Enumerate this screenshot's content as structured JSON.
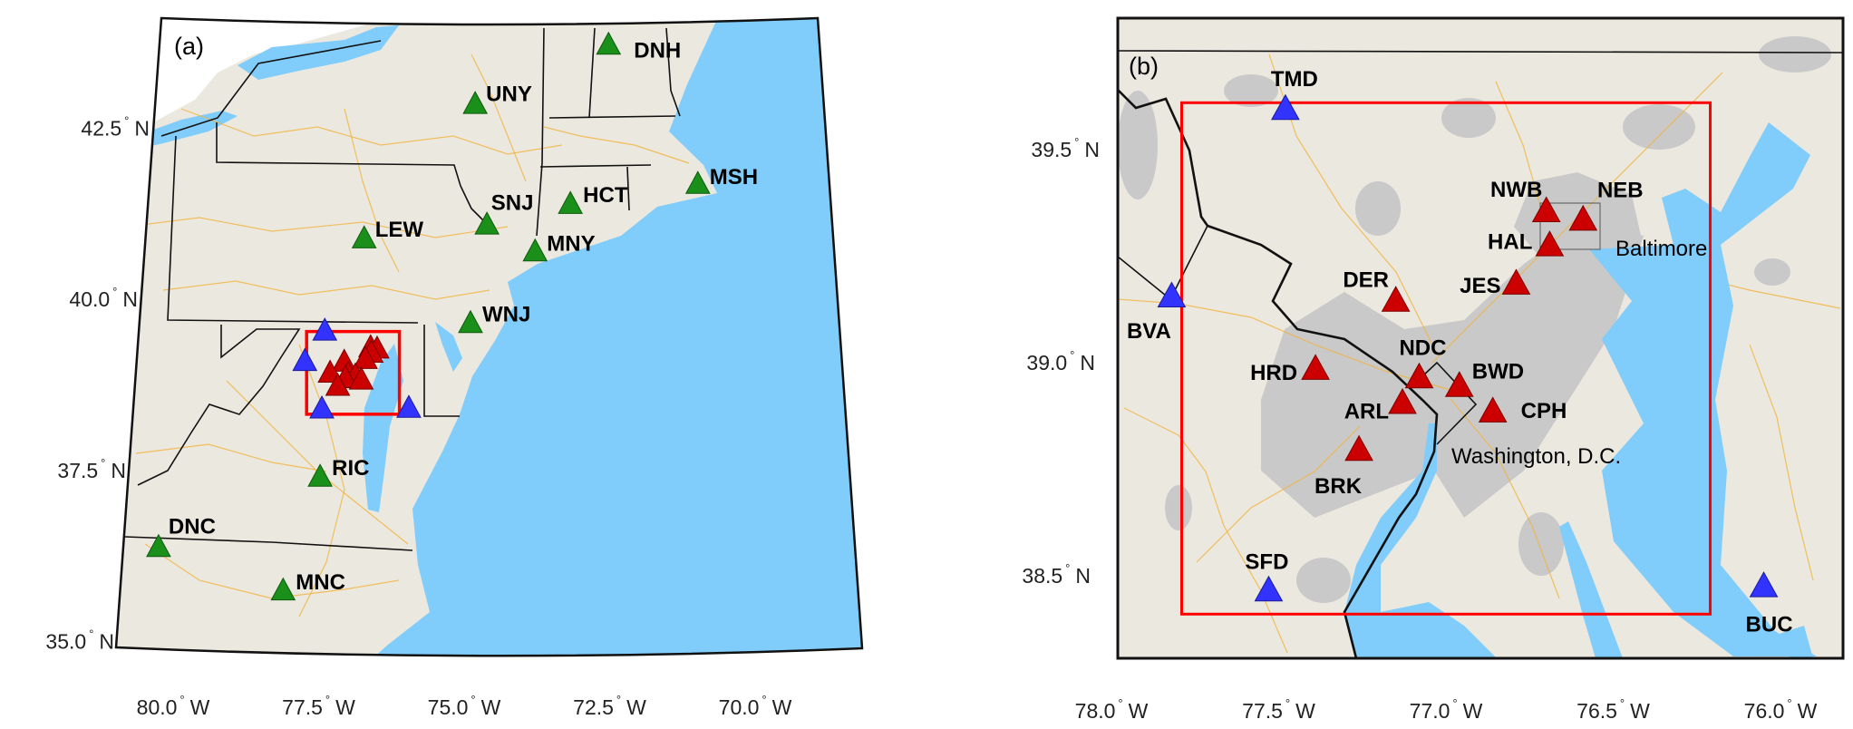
{
  "colors": {
    "land": "#ebe8df",
    "water": "#80ccfa",
    "urban": "#c9c9c9",
    "regional_site": "#cc0000",
    "background_site": "#3333ff",
    "inflow_site": "#1a8f1a",
    "box": "#ff0000"
  },
  "panel_a": {
    "title": "(a)",
    "lat_ticks": [
      {
        "value": "42.5",
        "hemi": "N",
        "lat": 42.5
      },
      {
        "value": "40.0",
        "hemi": "N",
        "lat": 40.0
      },
      {
        "value": "37.5",
        "hemi": "N",
        "lat": 37.5
      },
      {
        "value": "35.0",
        "hemi": "N",
        "lat": 35.0
      }
    ],
    "lon_ticks": [
      {
        "value": "80.0",
        "hemi": "W",
        "lon": 80.0
      },
      {
        "value": "77.5",
        "hemi": "W",
        "lon": 77.5
      },
      {
        "value": "75.0",
        "hemi": "W",
        "lon": 75.0
      },
      {
        "value": "72.5",
        "hemi": "W",
        "lon": 72.5
      },
      {
        "value": "70.0",
        "hemi": "W",
        "lon": 70.0
      }
    ],
    "stations": [
      {
        "code": "DNH",
        "lat": 43.74,
        "lon": 72.65
      },
      {
        "code": "UNY",
        "lat": 42.88,
        "lon": 74.92
      },
      {
        "code": "MSH",
        "lat": 41.72,
        "lon": 71.13
      },
      {
        "code": "HCT",
        "lat": 41.43,
        "lon": 73.3
      },
      {
        "code": "SNJ",
        "lat": 41.13,
        "lon": 74.72
      },
      {
        "code": "LEW",
        "lat": 40.93,
        "lon": 76.81
      },
      {
        "code": "MNY",
        "lat": 40.74,
        "lon": 73.9
      },
      {
        "code": "WNJ",
        "lat": 39.7,
        "lon": 75.0
      },
      {
        "code": "RIC",
        "lat": 37.47,
        "lon": 77.56
      },
      {
        "code": "DNC",
        "lat": 36.45,
        "lon": 80.31
      },
      {
        "code": "MNC",
        "lat": 35.82,
        "lon": 78.19
      }
    ]
  },
  "panel_b": {
    "title": "(b)",
    "lat_ticks": [
      {
        "value": "39.5",
        "hemi": "N",
        "lat": 39.5
      },
      {
        "value": "39.0",
        "hemi": "N",
        "lat": 39.0
      },
      {
        "value": "38.5",
        "hemi": "N",
        "lat": 38.5
      }
    ],
    "lon_ticks": [
      {
        "value": "78.0",
        "hemi": "W",
        "lon": 78.0
      },
      {
        "value": "77.5",
        "hemi": "W",
        "lon": 77.5
      },
      {
        "value": "77.0",
        "hemi": "W",
        "lon": 77.0
      },
      {
        "value": "76.5",
        "hemi": "W",
        "lon": 76.5
      },
      {
        "value": "76.0",
        "hemi": "W",
        "lon": 76.0
      }
    ],
    "places": [
      {
        "name": "Baltimore"
      },
      {
        "name": "Washington, D.C."
      }
    ]
  },
  "domain_box": {
    "lat_min": 38.41,
    "lat_max": 39.61,
    "lon_west": 77.79,
    "lon_east": 76.21
  },
  "regional_stations": [
    {
      "code": "TMD",
      "lat": 39.59,
      "lon": 77.48,
      "type": "background"
    },
    {
      "code": "BVA",
      "lat": 39.15,
      "lon": 77.82,
      "type": "background"
    },
    {
      "code": "SFD",
      "lat": 38.46,
      "lon": 77.53,
      "type": "background"
    },
    {
      "code": "BUC",
      "lat": 38.47,
      "lon": 76.05,
      "type": "background"
    },
    {
      "code": "NWB",
      "lat": 39.35,
      "lon": 76.7,
      "type": "urban"
    },
    {
      "code": "NEB",
      "lat": 39.33,
      "lon": 76.59,
      "type": "urban"
    },
    {
      "code": "HAL",
      "lat": 39.27,
      "lon": 76.69,
      "type": "urban"
    },
    {
      "code": "DER",
      "lat": 39.14,
      "lon": 77.15,
      "type": "urban"
    },
    {
      "code": "JES",
      "lat": 39.18,
      "lon": 76.79,
      "type": "urban"
    },
    {
      "code": "NDC",
      "lat": 38.96,
      "lon": 77.08,
      "type": "urban"
    },
    {
      "code": "HRD",
      "lat": 38.98,
      "lon": 77.39,
      "type": "urban"
    },
    {
      "code": "BWD",
      "lat": 38.94,
      "lon": 76.96,
      "type": "urban"
    },
    {
      "code": "ARL",
      "lat": 38.9,
      "lon": 77.13,
      "type": "urban"
    },
    {
      "code": "CPH",
      "lat": 38.88,
      "lon": 76.86,
      "type": "urban"
    },
    {
      "code": "BRK",
      "lat": 38.79,
      "lon": 77.26,
      "type": "urban"
    }
  ]
}
